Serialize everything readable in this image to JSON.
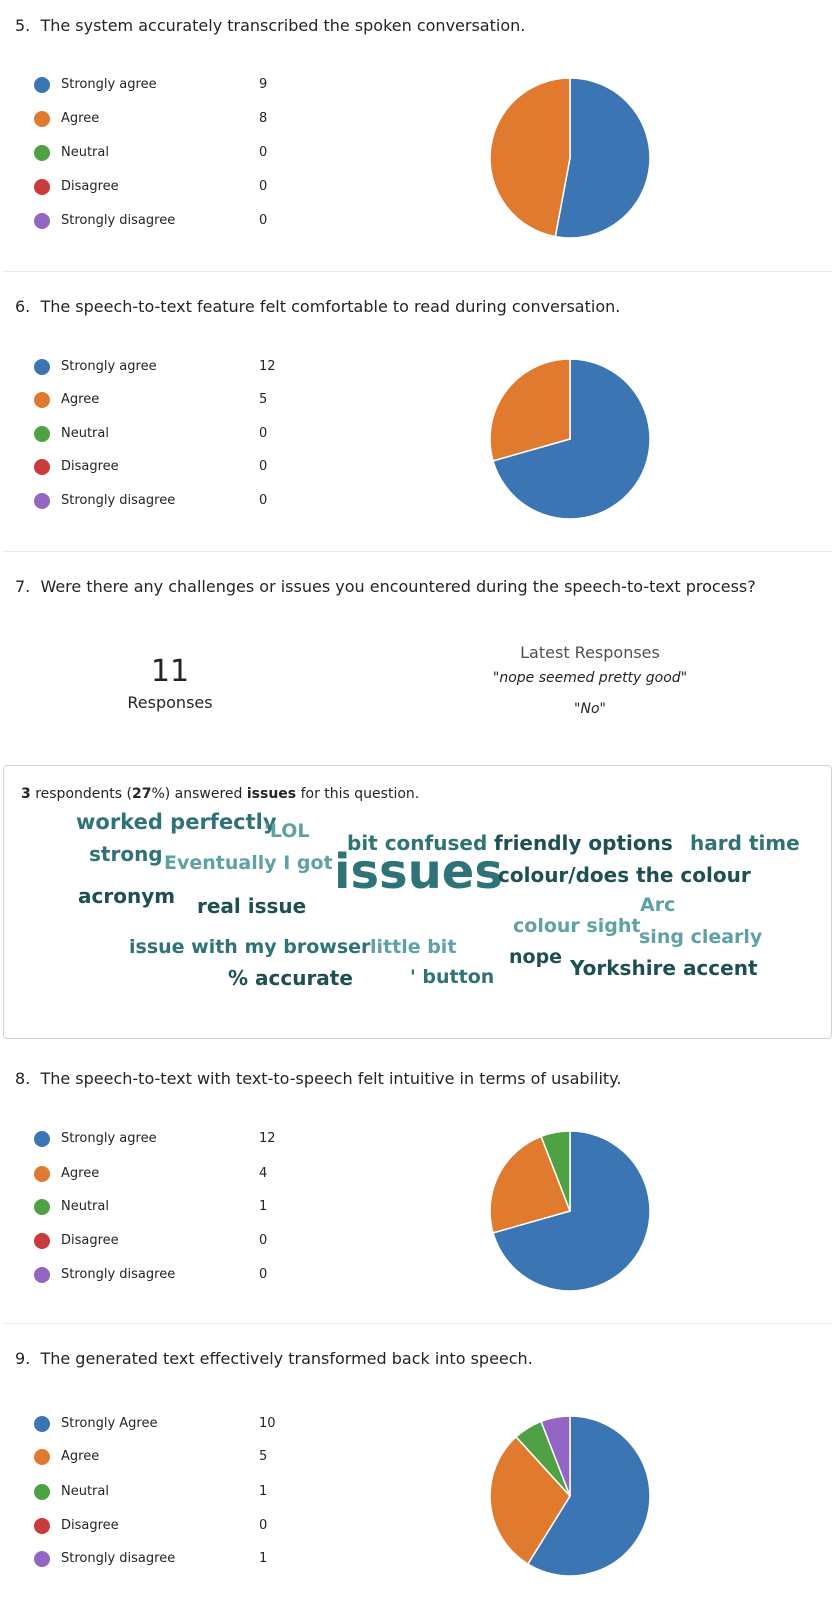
{
  "questions": [
    {
      "number": "5.",
      "text": "The system accurately transcribed the spoken conversation.",
      "options": [
        {
          "label": "Strongly agree",
          "count": 9,
          "color": "#3b75b4"
        },
        {
          "label": "Agree",
          "count": 8,
          "color": "#e07a2e"
        },
        {
          "label": "Neutral",
          "count": 0,
          "color": "#4ea244"
        },
        {
          "label": "Disagree",
          "count": 0,
          "color": "#cc3b3b"
        },
        {
          "label": "Strongly disagree",
          "count": 0,
          "color": "#9266c2"
        }
      ]
    },
    {
      "number": "6.",
      "text": "The speech-to-text feature felt comfortable to read during conversation.",
      "options": [
        {
          "label": "Strongly agree",
          "count": 12,
          "color": "#3b75b4"
        },
        {
          "label": "Agree",
          "count": 5,
          "color": "#e07a2e"
        },
        {
          "label": "Neutral",
          "count": 0,
          "color": "#4ea244"
        },
        {
          "label": "Disagree",
          "count": 0,
          "color": "#cc3b3b"
        },
        {
          "label": "Strongly disagree",
          "count": 0,
          "color": "#9266c2"
        }
      ]
    },
    {
      "number": "8.",
      "text": "The speech-to-text with text-to-speech felt intuitive in terms of usability.",
      "options": [
        {
          "label": "Strongly agree",
          "count": 12,
          "color": "#3b75b4"
        },
        {
          "label": "Agree",
          "count": 4,
          "color": "#e07a2e"
        },
        {
          "label": "Neutral",
          "count": 1,
          "color": "#4ea244"
        },
        {
          "label": "Disagree",
          "count": 0,
          "color": "#cc3b3b"
        },
        {
          "label": "Strongly disagree",
          "count": 0,
          "color": "#9266c2"
        }
      ]
    },
    {
      "number": "9.",
      "text": "The generated text effectively transformed back into speech.",
      "options": [
        {
          "label": "Strongly Agree",
          "count": 10,
          "color": "#3b75b4"
        },
        {
          "label": "Agree",
          "count": 5,
          "color": "#e07a2e"
        },
        {
          "label": "Neutral",
          "count": 1,
          "color": "#4ea244"
        },
        {
          "label": "Disagree",
          "count": 0,
          "color": "#cc3b3b"
        },
        {
          "label": "Strongly disagree",
          "count": 1,
          "color": "#9266c2"
        }
      ]
    }
  ],
  "text_question": {
    "number": "7.",
    "text": "Were there any challenges or issues you encountered during the speech-to-text process?",
    "response_count": "11",
    "response_label": "Responses",
    "latest_title": "Latest Responses",
    "latest": [
      "\"nope seemed pretty good\"",
      "\"No\""
    ],
    "cloud_summary": {
      "count": "3",
      "text1": " respondents (",
      "percent": "27",
      "text2": "%) answered ",
      "keyword": "issues",
      "text3": " for this question."
    },
    "words": [
      "worked perfectly",
      "'LOL",
      "bit confused",
      "friendly options",
      "hard time",
      "strong",
      "Eventually I got",
      "issues",
      "colour/does the colour",
      "acronym",
      "real issue",
      "Arc",
      "colour sight",
      "sing clearly",
      "issue with my browser",
      "little bit",
      "nope",
      "Yorkshire accent",
      "% accurate",
      "' button"
    ]
  },
  "chart_data": [
    {
      "type": "pie",
      "categories": [
        "Strongly agree",
        "Agree",
        "Neutral",
        "Disagree",
        "Strongly disagree"
      ],
      "values": [
        9,
        8,
        0,
        0,
        0
      ]
    },
    {
      "type": "pie",
      "categories": [
        "Strongly agree",
        "Agree",
        "Neutral",
        "Disagree",
        "Strongly disagree"
      ],
      "values": [
        12,
        5,
        0,
        0,
        0
      ]
    },
    {
      "type": "pie",
      "categories": [
        "Strongly agree",
        "Agree",
        "Neutral",
        "Disagree",
        "Strongly disagree"
      ],
      "values": [
        12,
        4,
        1,
        0,
        0
      ]
    },
    {
      "type": "pie",
      "categories": [
        "Strongly Agree",
        "Agree",
        "Neutral",
        "Disagree",
        "Strongly disagree"
      ],
      "values": [
        10,
        5,
        1,
        0,
        1
      ]
    }
  ]
}
